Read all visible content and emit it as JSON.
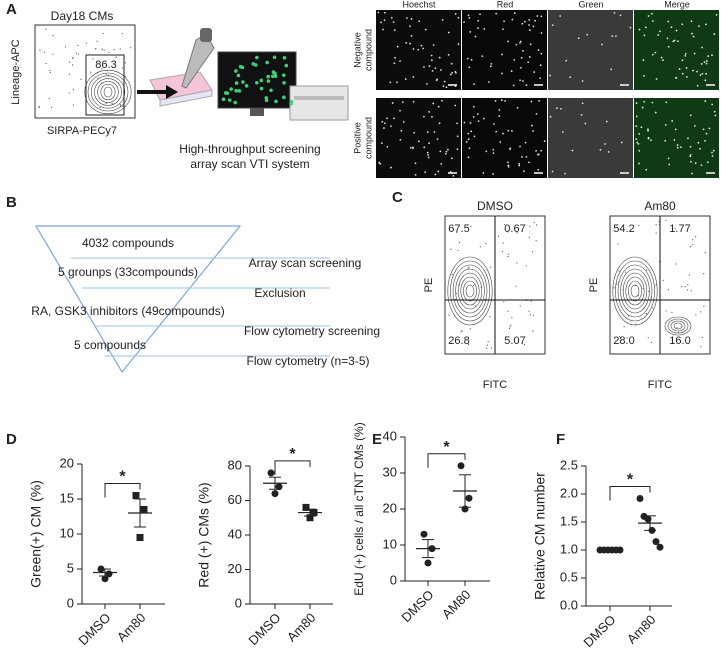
{
  "panel_labels": [
    "A",
    "B",
    "C",
    "D",
    "E",
    "F"
  ],
  "panel_a": {
    "flow_title": "Day18 CMs",
    "gate_value": "86.3",
    "y_label": "Lineage-APC",
    "x_label": "SIRPA-PECy7",
    "system_caption": [
      "High-throughput screening",
      "array scan VTI system"
    ],
    "columns": [
      "Hoechst",
      "Red",
      "Green",
      "Merge"
    ],
    "rows": [
      [
        "Negative",
        "compound"
      ],
      [
        "Positive",
        "compound"
      ]
    ]
  },
  "panel_b": {
    "funnel": [
      "4032 compounds",
      "5 grounps (33compounds)",
      "RA, GSK3 inhibitors (49compounds)",
      "5 compounds"
    ],
    "steps": [
      "Array scan screening",
      "Exclusion",
      "Flow cytometry screening",
      "Flow cytometry (n=3-5)"
    ]
  },
  "panel_c": {
    "y_label": "PE",
    "x_label": "FITC",
    "plots": [
      {
        "title": "DMSO",
        "quadrants": [
          "67.5",
          "0.67",
          "26.8",
          "5.07"
        ]
      },
      {
        "title": "Am80",
        "quadrants": [
          "54.2",
          "1.77",
          "28.0",
          "16.0"
        ]
      }
    ]
  },
  "chart_data": [
    {
      "type": "dot",
      "y_label": "Green(+) CM (%)",
      "categories": [
        "DMSO",
        "Am80"
      ],
      "markers": [
        "circle",
        "square"
      ],
      "values": [
        [
          5.0,
          4.3,
          3.6
        ],
        [
          15.5,
          13.5,
          9.5
        ]
      ],
      "means": [
        4.5,
        13.0
      ],
      "errors": [
        0.5,
        2.0
      ],
      "ylim": [
        0,
        20
      ],
      "yticks": [
        0,
        5,
        10,
        15,
        20
      ],
      "significance": "*",
      "color": "#222222"
    },
    {
      "type": "dot",
      "y_label": "Red (+) CMs (%)",
      "categories": [
        "DMSO",
        "Am80"
      ],
      "markers": [
        "circle",
        "square"
      ],
      "values": [
        [
          76,
          68,
          64
        ],
        [
          56,
          53,
          50
        ]
      ],
      "means": [
        70,
        53
      ],
      "errors": [
        3.5,
        2.0
      ],
      "ylim": [
        0,
        80
      ],
      "yticks": [
        0,
        20,
        40,
        60,
        80
      ],
      "significance": "*",
      "color": "#222222"
    },
    {
      "type": "dot",
      "y_label": "EdU (+) cells / all cTNT CMs (%)",
      "categories": [
        "DMSO",
        "AM80"
      ],
      "markers": [
        "circle",
        "circle"
      ],
      "values": [
        [
          13,
          9,
          5
        ],
        [
          32,
          23,
          20
        ]
      ],
      "means": [
        9,
        25
      ],
      "errors": [
        2.5,
        4.5
      ],
      "ylim": [
        0,
        40
      ],
      "yticks": [
        0,
        10,
        20,
        30,
        40
      ],
      "significance": "*",
      "color": "#222222"
    },
    {
      "type": "dot",
      "y_label": "Relative CM number",
      "categories": [
        "DMSO",
        "Am80"
      ],
      "markers": [
        "circle",
        "circle"
      ],
      "values": [
        [
          1,
          1,
          1,
          1,
          1,
          1
        ],
        [
          1.92,
          1.6,
          1.55,
          1.35,
          1.15,
          1.05
        ]
      ],
      "means": [
        1.0,
        1.48
      ],
      "errors": [
        0,
        0.13
      ],
      "ylim": [
        0,
        2.5
      ],
      "yticks": [
        {
          "value": 0,
          "label": "0.0"
        },
        0.5,
        {
          "value": 1,
          "label": "1.0"
        },
        1.5,
        {
          "value": 2,
          "label": "2.0"
        },
        2.5
      ],
      "significance": "*",
      "color": "#222222"
    }
  ]
}
